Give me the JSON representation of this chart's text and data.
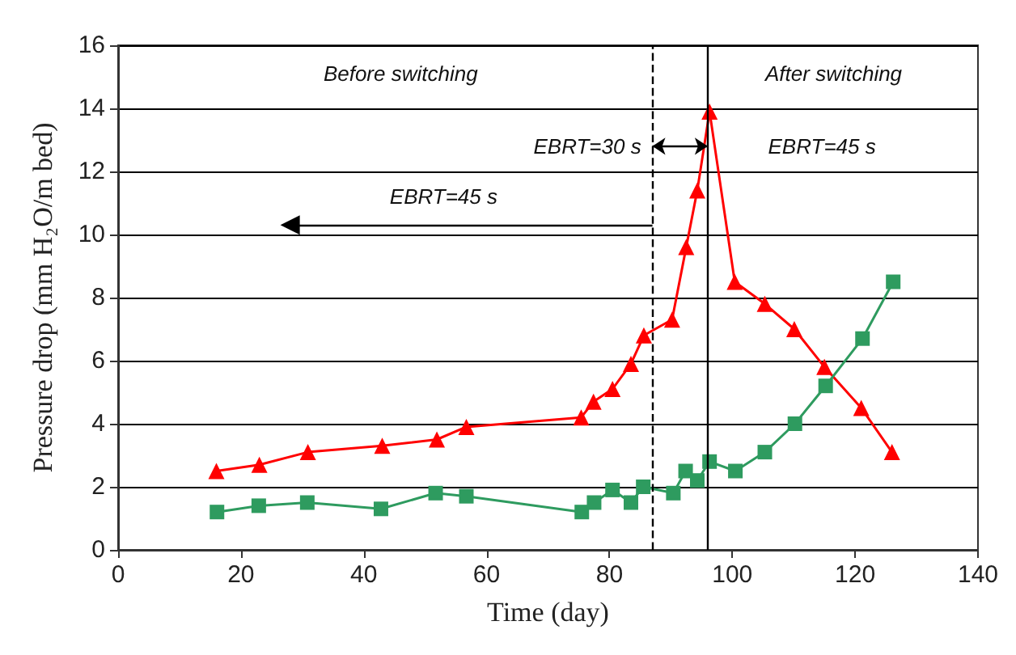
{
  "chart_data": {
    "type": "line",
    "xlabel": "Time (day)",
    "ylabel": "Pressure drop (mm H₂O/m bed)",
    "xlim": [
      0,
      140
    ],
    "xticks": [
      0,
      20,
      40,
      60,
      80,
      100,
      120,
      140
    ],
    "ylim": [
      0,
      16
    ],
    "yticks": [
      0,
      2,
      4,
      6,
      8,
      10,
      12,
      14,
      16
    ],
    "grid": "y",
    "series": [
      {
        "color": "#ff0000",
        "marker": "triangle",
        "x": [
          16,
          23,
          30.9,
          43,
          51.9,
          56.7,
          75.4,
          77.4,
          80.5,
          83.5,
          85.6,
          90.2,
          92.5,
          94.3,
          96.3,
          100.4,
          105.3,
          110.1,
          115,
          121,
          126
        ],
        "values": [
          2.5,
          2.7,
          3.1,
          3.3,
          3.5,
          3.9,
          4.2,
          4.7,
          5.1,
          5.9,
          6.8,
          7.3,
          9.6,
          11.4,
          13.9,
          8.5,
          7.8,
          7.0,
          5.8,
          4.5,
          3.1
        ]
      },
      {
        "color": "#2e9b5f",
        "marker": "square",
        "x": [
          16.1,
          22.9,
          30.8,
          42.8,
          51.7,
          56.7,
          75.5,
          77.5,
          80.5,
          83.5,
          85.5,
          90.4,
          92.4,
          94.3,
          96.3,
          100.5,
          105.3,
          110.2,
          115.2,
          121.2,
          126.2
        ],
        "values": [
          1.2,
          1.4,
          1.5,
          1.3,
          1.8,
          1.7,
          1.2,
          1.5,
          1.9,
          1.5,
          2.0,
          1.8,
          2.5,
          2.2,
          2.8,
          2.5,
          3.1,
          4.0,
          5.2,
          6.7,
          8.5
        ]
      }
    ],
    "ref_lines": [
      {
        "axis": "x",
        "value": 96,
        "line_style": "solid"
      },
      {
        "axis": "x",
        "value": 87,
        "line_style": "dashed"
      }
    ],
    "annotations": [
      "Before switching",
      "After switching",
      "EBRT=30 s",
      "EBRT=45 s",
      "EBRT=45 s"
    ]
  }
}
